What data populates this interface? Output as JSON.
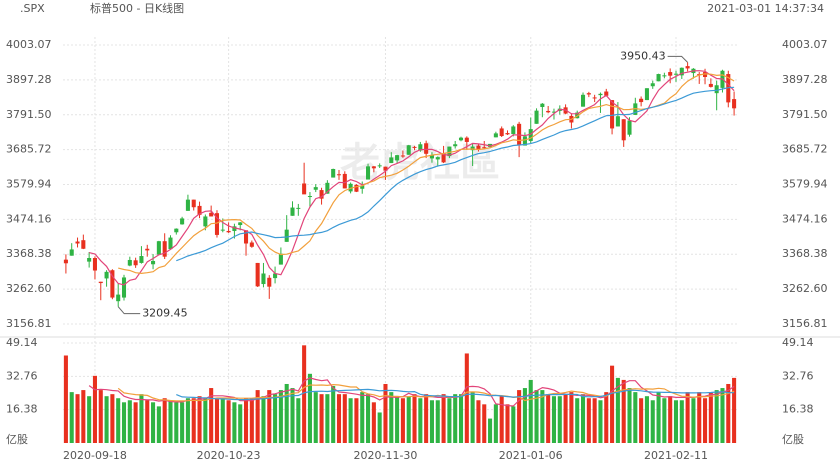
{
  "chart_data": {
    "type": "candlestick",
    "symbol": ".SPX",
    "title": "标普500 - 日K线图",
    "timestamp": "2021-03-01 14:37:34",
    "watermark": "老虎社區",
    "categories": [
      null,
      null,
      null,
      null,
      null,
      "2020-09-18",
      null,
      null,
      null,
      null,
      null,
      null,
      null,
      null,
      null,
      null,
      null,
      null,
      null,
      null,
      null,
      null,
      null,
      null,
      null,
      null,
      null,
      null,
      "2020-10-23",
      null,
      null,
      null,
      null,
      null,
      null,
      null,
      null,
      null,
      null,
      null,
      null,
      null,
      null,
      null,
      null,
      null,
      null,
      null,
      null,
      null,
      null,
      null,
      null,
      null,
      null,
      "2020-11-30",
      null,
      null,
      null,
      null,
      null,
      null,
      null,
      null,
      null,
      null,
      null,
      null,
      null,
      null,
      null,
      null,
      null,
      null,
      null,
      null,
      null,
      null,
      null,
      null,
      "2021-01-06",
      null,
      null,
      null,
      null,
      null,
      null,
      null,
      null,
      null,
      null,
      null,
      null,
      null,
      null,
      null,
      null,
      null,
      null,
      null,
      null,
      null,
      null,
      null,
      null,
      "2021-02-11",
      null,
      null,
      null,
      null,
      null,
      null,
      null,
      null,
      null,
      null
    ],
    "open": [
      3352,
      3364,
      3407,
      3411,
      3346,
      3357,
      3285,
      3295,
      3320,
      3226,
      3237,
      3334,
      3350,
      3342,
      3385,
      3338,
      3367,
      3408,
      3384,
      3435,
      3459,
      3500,
      3534,
      3515,
      3453,
      3494,
      3493,
      3440,
      3439,
      3439,
      3457,
      3441,
      3404,
      3342,
      3278,
      3297,
      3296,
      3337,
      3406,
      3485,
      3509,
      3583,
      3544,
      3564,
      3563,
      3552,
      3601,
      3611,
      3612,
      3559,
      3579,
      3567,
      3595,
      3635,
      3638,
      3634,
      3645,
      3653,
      3668,
      3670,
      3694,
      3683,
      3705,
      3659,
      3656,
      3675,
      3666,
      3696,
      3714,
      3722,
      3684,
      3698,
      3693,
      3694,
      3723,
      3750,
      3736,
      3733,
      3764,
      3698,
      3712,
      3764,
      3815,
      3803,
      3801,
      3803,
      3814,
      3788,
      3781,
      3816,
      3857,
      3844,
      3851,
      3862,
      3836,
      3756,
      3778,
      3731,
      3791,
      3840,
      3836,
      3878,
      3893,
      3910,
      3921,
      3916,
      3911,
      3939,
      3918,
      3915,
      3921,
      3885,
      3857,
      3873,
      3915,
      3839
    ],
    "high": [
      3368,
      3402,
      3419,
      3428,
      3375,
      3362,
      3285,
      3320,
      3323,
      3279,
      3306,
      3361,
      3358,
      3393,
      3397,
      3369,
      3409,
      3432,
      3426,
      3447,
      3482,
      3549,
      3534,
      3528,
      3489,
      3516,
      3502,
      3477,
      3465,
      3461,
      3466,
      3441,
      3410,
      3342,
      3342,
      3305,
      3331,
      3389,
      3487,
      3529,
      3521,
      3646,
      3557,
      3581,
      3570,
      3593,
      3628,
      3624,
      3620,
      3586,
      3581,
      3589,
      3643,
      3636,
      3644,
      3634,
      3678,
      3670,
      3683,
      3700,
      3697,
      3709,
      3713,
      3678,
      3665,
      3697,
      3695,
      3712,
      3725,
      3726,
      3703,
      3703,
      3712,
      3703,
      3740,
      3756,
      3744,
      3760,
      3770,
      3738,
      3783,
      3811,
      3827,
      3818,
      3810,
      3820,
      3823,
      3796,
      3804,
      3859,
      3861,
      3852,
      3859,
      3870,
      3836,
      3830,
      3778,
      3784,
      3843,
      3847,
      3872,
      3895,
      3916,
      3919,
      3932,
      3925,
      3935,
      3950.43,
      3933,
      3921,
      3931,
      3902,
      3895,
      3928,
      3925,
      3862
    ],
    "low": [
      3310,
      3364,
      3389,
      3384,
      3328,
      3292,
      3229,
      3270,
      3232,
      3209.45,
      3228,
      3332,
      3327,
      3340,
      3361,
      3323,
      3367,
      3354,
      3384,
      3428,
      3458,
      3500,
      3501,
      3478,
      3441,
      3483,
      3419,
      3435,
      3433,
      3416,
      3441,
      3364,
      3388,
      3269,
      3268,
      3233,
      3280,
      3337,
      3406,
      3485,
      3485,
      3551,
      3511,
      3557,
      3519,
      3552,
      3601,
      3594,
      3568,
      3553,
      3557,
      3552,
      3595,
      3617,
      3630,
      3594,
      3645,
      3645,
      3661,
      3670,
      3684,
      3679,
      3660,
      3646,
      3634,
      3645,
      3660,
      3689,
      3711,
      3685,
      3636,
      3680,
      3689,
      3690,
      3723,
      3724,
      3730,
      3726,
      3663,
      3698,
      3705,
      3764,
      3784,
      3796,
      3777,
      3792,
      3793,
      3750,
      3780,
      3816,
      3845,
      3830,
      3797,
      3847,
      3732,
      3756,
      3694,
      3725,
      3791,
      3817,
      3836,
      3870,
      3893,
      3902,
      3887,
      3891,
      3900,
      3923,
      3901,
      3885,
      3884,
      3874,
      3805,
      3859,
      3814,
      3789
    ],
    "close": [
      3341,
      3383,
      3401,
      3385,
      3357,
      3319,
      3281,
      3315,
      3237,
      3246,
      3298,
      3351,
      3335,
      3363,
      3380,
      3348,
      3408,
      3361,
      3419,
      3446,
      3477,
      3534,
      3511,
      3488,
      3483,
      3483,
      3427,
      3443,
      3435,
      3453,
      3465,
      3401,
      3391,
      3271,
      3310,
      3270,
      3310,
      3370,
      3443,
      3510,
      3509,
      3550,
      3545,
      3572,
      3537,
      3585,
      3627,
      3610,
      3568,
      3582,
      3558,
      3577,
      3635,
      3629,
      3638,
      3622,
      3662,
      3669,
      3666,
      3699,
      3692,
      3702,
      3673,
      3668,
      3663,
      3647,
      3695,
      3702,
      3722,
      3709,
      3695,
      3687,
      3690,
      3703,
      3735,
      3727,
      3732,
      3756,
      3701,
      3726,
      3748,
      3804,
      3825,
      3799,
      3801,
      3810,
      3795,
      3768,
      3798,
      3852,
      3853,
      3841,
      3855,
      3849,
      3750,
      3787,
      3714,
      3774,
      3826,
      3830,
      3872,
      3887,
      3915,
      3911,
      3910,
      3916,
      3934,
      3932,
      3931,
      3913,
      3906,
      3876,
      3881,
      3925,
      3829,
      3811
    ],
    "volume": [
      43,
      25,
      24,
      26,
      23,
      33,
      26,
      23,
      24,
      22,
      20,
      21,
      20,
      24,
      21,
      20,
      18,
      22,
      21,
      20,
      20,
      22,
      22,
      23,
      22,
      27,
      22,
      22,
      21,
      20,
      19,
      22,
      22,
      26,
      23,
      26,
      24,
      26,
      29,
      27,
      22,
      48,
      34,
      25,
      24,
      24,
      28,
      24,
      24,
      22,
      22,
      25,
      24,
      20,
      15,
      29,
      25,
      23,
      22,
      23,
      24,
      22,
      24,
      21,
      21,
      24,
      22,
      24,
      24,
      44,
      25,
      21,
      19,
      12,
      19,
      23,
      19,
      18,
      26,
      27,
      31,
      26,
      26,
      24,
      23,
      23,
      24,
      25,
      22,
      24,
      22,
      22,
      21,
      25,
      38,
      32,
      31,
      27,
      25,
      22,
      23,
      21,
      25,
      22,
      23,
      21,
      21,
      25,
      22,
      25,
      22,
      25,
      26,
      27,
      29,
      32
    ],
    "up_color": "#2fb344",
    "down_color": "#e8301f",
    "ylim": [
      3156.81,
      4003.07
    ],
    "yticks": [
      3156.81,
      {
        "value": 3262.6,
        "label": "3262.60"
      },
      3368.38,
      3474.16,
      3579.94,
      3685.72,
      {
        "value": 3791.5,
        "label": "3791.50"
      },
      3897.28,
      4003.07
    ],
    "volume_ylim": [
      0,
      49.14
    ],
    "volume_yticks": [
      16.38,
      32.76,
      49.14
    ],
    "volume_unit": "亿股",
    "ma": [
      {
        "period": 5,
        "color": "#e2447a"
      },
      {
        "period": 10,
        "color": "#f2a03c"
      },
      {
        "period": 20,
        "color": "#3c9ad6"
      }
    ],
    "volume_ma": [
      {
        "period": 5,
        "color": "#e2447a"
      },
      {
        "period": 10,
        "color": "#f2a03c"
      },
      {
        "period": 20,
        "color": "#3c9ad6"
      }
    ],
    "grid": true,
    "annotations": [
      "chart_data.high.107",
      "chart_data.low.9"
    ]
  }
}
